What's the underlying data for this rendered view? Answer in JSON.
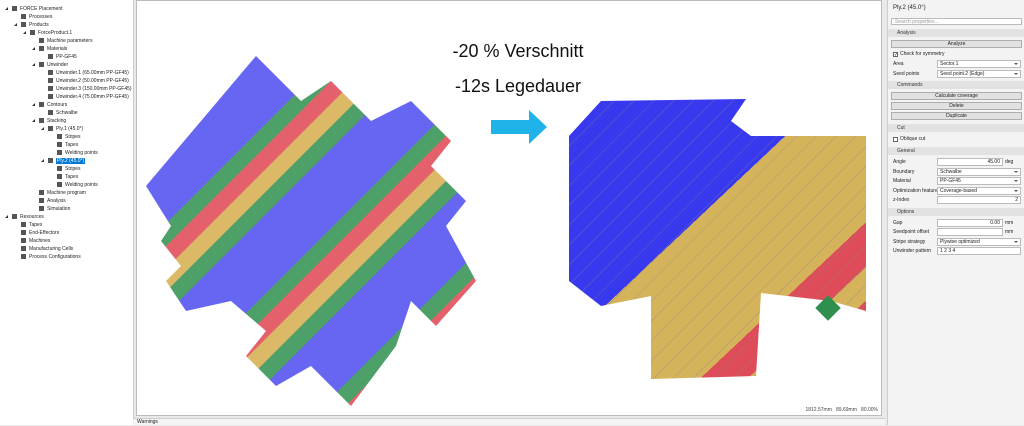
{
  "tree": [
    {
      "label": "FORCE Placement",
      "children": [
        {
          "label": "Processes"
        },
        {
          "label": "Products",
          "children": [
            {
              "label": "ForceProduct.1",
              "children": [
                {
                  "label": "Machine parameters"
                },
                {
                  "label": "Materials",
                  "children": [
                    {
                      "label": "PP-GF45"
                    }
                  ]
                },
                {
                  "label": "Unwinder",
                  "children": [
                    {
                      "label": "Unwinder.1 (65.00mm PP-GF45)"
                    },
                    {
                      "label": "Unwinder.2 (50.00mm PP-GF45)"
                    },
                    {
                      "label": "Unwinder.3 (150.00mm PP-GF45)"
                    },
                    {
                      "label": "Unwinder.4 (75.00mm PP-GF45)"
                    }
                  ]
                },
                {
                  "label": "Contours",
                  "children": [
                    {
                      "label": "Schwalbe"
                    }
                  ]
                },
                {
                  "label": "Stacking",
                  "children": [
                    {
                      "label": "Ply.1 (45.0°)",
                      "children": [
                        {
                          "label": "Stripes"
                        },
                        {
                          "label": "Tapes"
                        },
                        {
                          "label": "Welding points"
                        }
                      ]
                    },
                    {
                      "label": "Ply.2 (45.0°)",
                      "selected": true,
                      "children": [
                        {
                          "label": "Stripes"
                        },
                        {
                          "label": "Tapes"
                        },
                        {
                          "label": "Welding points"
                        }
                      ]
                    }
                  ]
                },
                {
                  "label": "Machine program"
                },
                {
                  "label": "Analysis"
                },
                {
                  "label": "Simulation"
                }
              ]
            }
          ]
        }
      ]
    },
    {
      "label": "Resources",
      "children": [
        {
          "label": "Tapes"
        },
        {
          "label": "End-Effectors"
        },
        {
          "label": "Machines"
        },
        {
          "label": "Manufacturing Cells"
        },
        {
          "label": "Process Configurations"
        }
      ]
    }
  ],
  "canvas": {
    "headline_1": "-20 % Verschnitt",
    "headline_2": "-12s Legedauer",
    "status": "1812.57mm   89.69mm   80.00%"
  },
  "bottom_tab": "Warnings",
  "properties": {
    "title": "Ply.2 (45.0°)",
    "search_placeholder": "Search properties...",
    "sections": [
      {
        "title": "Analysis",
        "items": [
          {
            "type": "button",
            "label": "Analyze"
          },
          {
            "type": "checkbox",
            "label": "Check for symmetry",
            "checked": true
          },
          {
            "type": "select",
            "label": "Area",
            "value": "Sector.1"
          },
          {
            "type": "select",
            "label": "Seed points",
            "value": "Seed point.2 (Edge)"
          }
        ]
      },
      {
        "title": "Commands",
        "items": [
          {
            "type": "button",
            "label": "Calculate coverage"
          },
          {
            "type": "button",
            "label": "Delete"
          },
          {
            "type": "button",
            "label": "Duplicate"
          }
        ]
      },
      {
        "title": "Cut",
        "items": [
          {
            "type": "checkbox",
            "label": "Oblique cut",
            "checked": false
          }
        ]
      },
      {
        "title": "General",
        "items": [
          {
            "type": "number",
            "label": "Angle",
            "value": "45.00",
            "unit": "deg"
          },
          {
            "type": "select",
            "label": "Boundary",
            "value": "Schwalbe"
          },
          {
            "type": "select",
            "label": "Material",
            "value": "PP-GF45"
          },
          {
            "type": "select",
            "label": "Optimization feature",
            "value": "Coverage-based"
          },
          {
            "type": "number",
            "label": "z-Index",
            "value": "2"
          }
        ]
      },
      {
        "title": "Options",
        "items": [
          {
            "type": "number",
            "label": "Gap",
            "value": "0.00",
            "unit": "mm"
          },
          {
            "type": "number",
            "label": "Seedpoint offset",
            "unit": "mm"
          },
          {
            "type": "select",
            "label": "Stripe strategy",
            "value": "Plywise optimized"
          },
          {
            "type": "text",
            "label": "Unwinder pattern",
            "value": "1 2 3 4"
          }
        ]
      }
    ]
  }
}
